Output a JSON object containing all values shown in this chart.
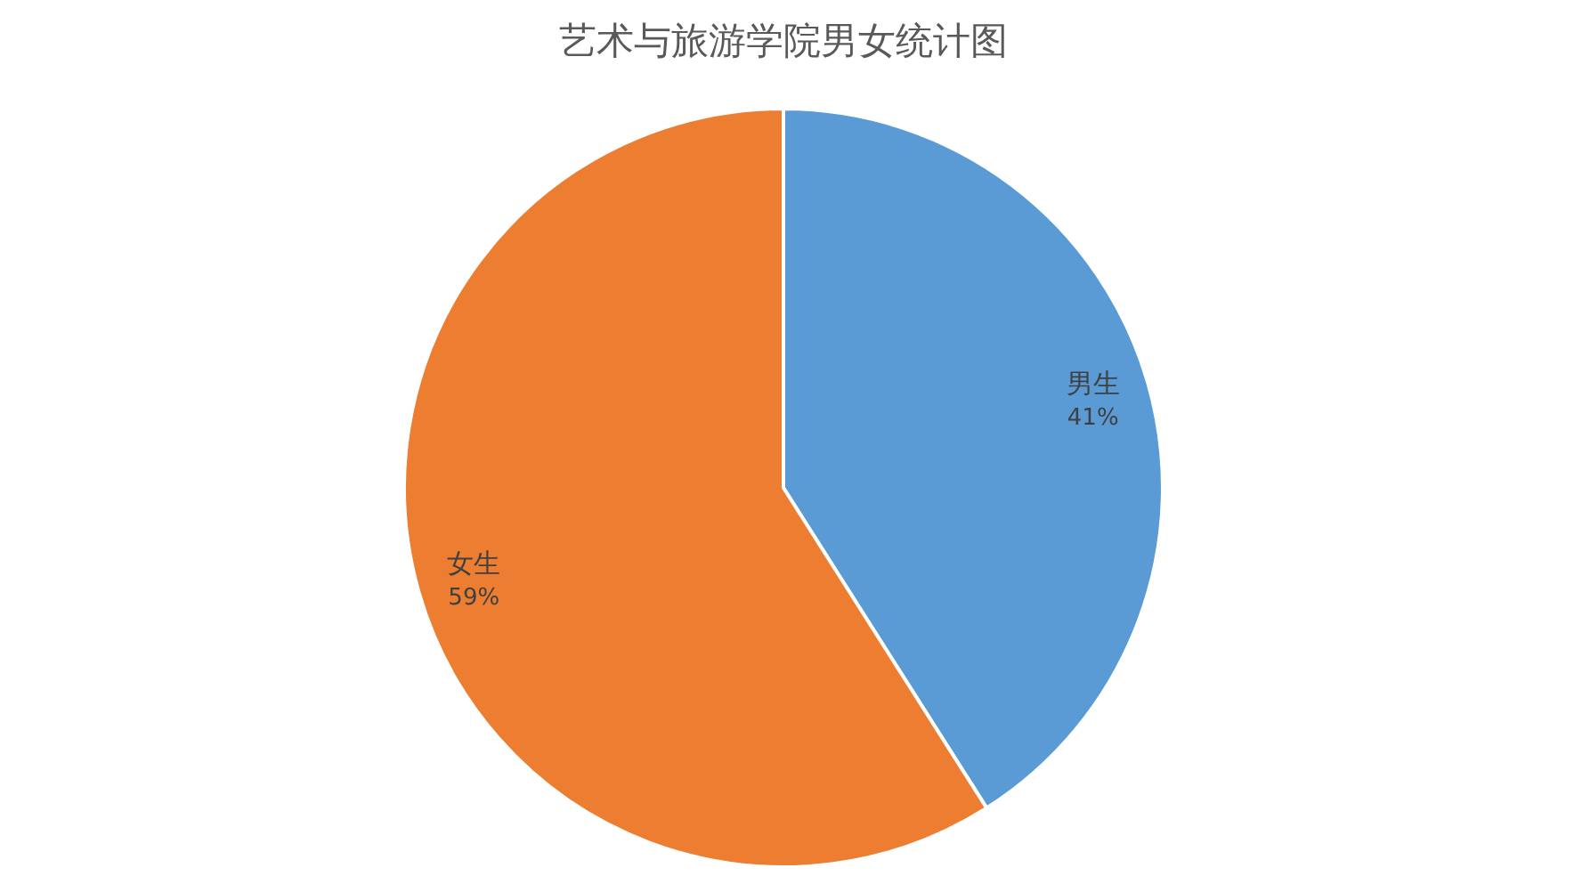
{
  "chart_data": {
    "type": "pie",
    "title": "艺术与旅游学院男女统计图",
    "categories": [
      "男生",
      "女生"
    ],
    "values": [
      41,
      59
    ],
    "colors": [
      "#5b9bd5",
      "#ed7d31"
    ],
    "value_labels": [
      "41%",
      "59%"
    ]
  }
}
